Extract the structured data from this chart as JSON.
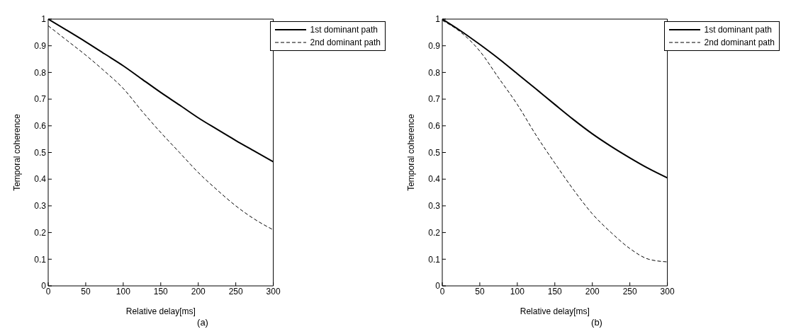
{
  "chart_data": [
    {
      "type": "line",
      "xlabel": "Relative delay[ms]",
      "ylabel": "Temporal coherence",
      "annotations": [
        "(a)"
      ],
      "x": [
        0,
        25,
        50,
        75,
        100,
        125,
        150,
        175,
        200,
        225,
        250,
        275,
        300
      ],
      "xlim": [
        0,
        300
      ],
      "xticks": [
        0,
        50,
        100,
        150,
        200,
        250,
        300
      ],
      "ylim": [
        0,
        1
      ],
      "yticks": [
        0,
        0.1,
        0.2,
        0.3,
        0.4,
        0.5,
        0.6,
        0.7,
        0.8,
        0.9,
        1
      ],
      "grid": false,
      "legend": "top right",
      "marker": "none",
      "series": [
        {
          "name": "1st dominant path",
          "color": "#000000",
          "line_style": "solid",
          "values": [
            1,
            0.958,
            0.915,
            0.87,
            0.825,
            0.775,
            0.725,
            0.678,
            0.63,
            0.587,
            0.545,
            0.505,
            0.465
          ]
        },
        {
          "name": "2nd dominant path",
          "color": "#000000",
          "line_style": "dashed",
          "values": [
            0.975,
            0.92,
            0.865,
            0.805,
            0.74,
            0.655,
            0.575,
            0.5,
            0.425,
            0.36,
            0.3,
            0.25,
            0.21
          ]
        }
      ]
    },
    {
      "type": "line",
      "xlabel": "Relative delay[ms]",
      "ylabel": "Temporal coherence",
      "annotations": [
        "(b)"
      ],
      "x": [
        0,
        25,
        50,
        75,
        100,
        125,
        150,
        175,
        200,
        225,
        250,
        275,
        300
      ],
      "xlim": [
        0,
        300
      ],
      "xticks": [
        0,
        50,
        100,
        150,
        200,
        250,
        300
      ],
      "ylim": [
        0,
        1
      ],
      "yticks": [
        0,
        0.1,
        0.2,
        0.3,
        0.4,
        0.5,
        0.6,
        0.7,
        0.8,
        0.9,
        1
      ],
      "grid": false,
      "legend": "top right",
      "marker": "none",
      "series": [
        {
          "name": "1st dominant path",
          "color": "#000000",
          "line_style": "solid",
          "values": [
            1,
            0.955,
            0.905,
            0.852,
            0.795,
            0.738,
            0.68,
            0.623,
            0.57,
            0.523,
            0.48,
            0.44,
            0.405
          ]
        },
        {
          "name": "2nd dominant path",
          "color": "#000000",
          "line_style": "dashed",
          "values": [
            0.995,
            0.95,
            0.88,
            0.78,
            0.68,
            0.565,
            0.46,
            0.36,
            0.27,
            0.2,
            0.14,
            0.1,
            0.09
          ]
        }
      ]
    }
  ]
}
